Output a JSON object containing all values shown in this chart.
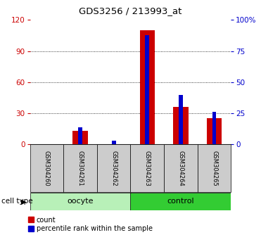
{
  "title": "GDS3256 / 213993_at",
  "samples": [
    "GSM304260",
    "GSM304261",
    "GSM304262",
    "GSM304263",
    "GSM304264",
    "GSM304265"
  ],
  "count_values": [
    0,
    13,
    0,
    110,
    36,
    25
  ],
  "percentile_values": [
    0,
    14,
    3,
    88,
    40,
    26
  ],
  "groups": [
    {
      "name": "oocyte",
      "indices": [
        0,
        1,
        2
      ],
      "color": "#b8f0b8"
    },
    {
      "name": "control",
      "indices": [
        3,
        4,
        5
      ],
      "color": "#33cc33"
    }
  ],
  "left_ylim": [
    0,
    120
  ],
  "right_ylim": [
    0,
    100
  ],
  "left_yticks": [
    0,
    30,
    60,
    90,
    120
  ],
  "right_yticks": [
    0,
    25,
    50,
    75,
    100
  ],
  "right_yticklabels": [
    "0",
    "25",
    "50",
    "75",
    "100%"
  ],
  "bar_color_red": "#cc0000",
  "bar_color_blue": "#0000cc",
  "left_tick_color": "#cc0000",
  "right_tick_color": "#0000cc",
  "cell_type_label": "cell type",
  "legend_count": "count",
  "legend_percentile": "percentile rank within the sample",
  "grid_yticks": [
    30,
    60,
    90
  ],
  "gray_bg": "#cccccc",
  "white": "#ffffff"
}
